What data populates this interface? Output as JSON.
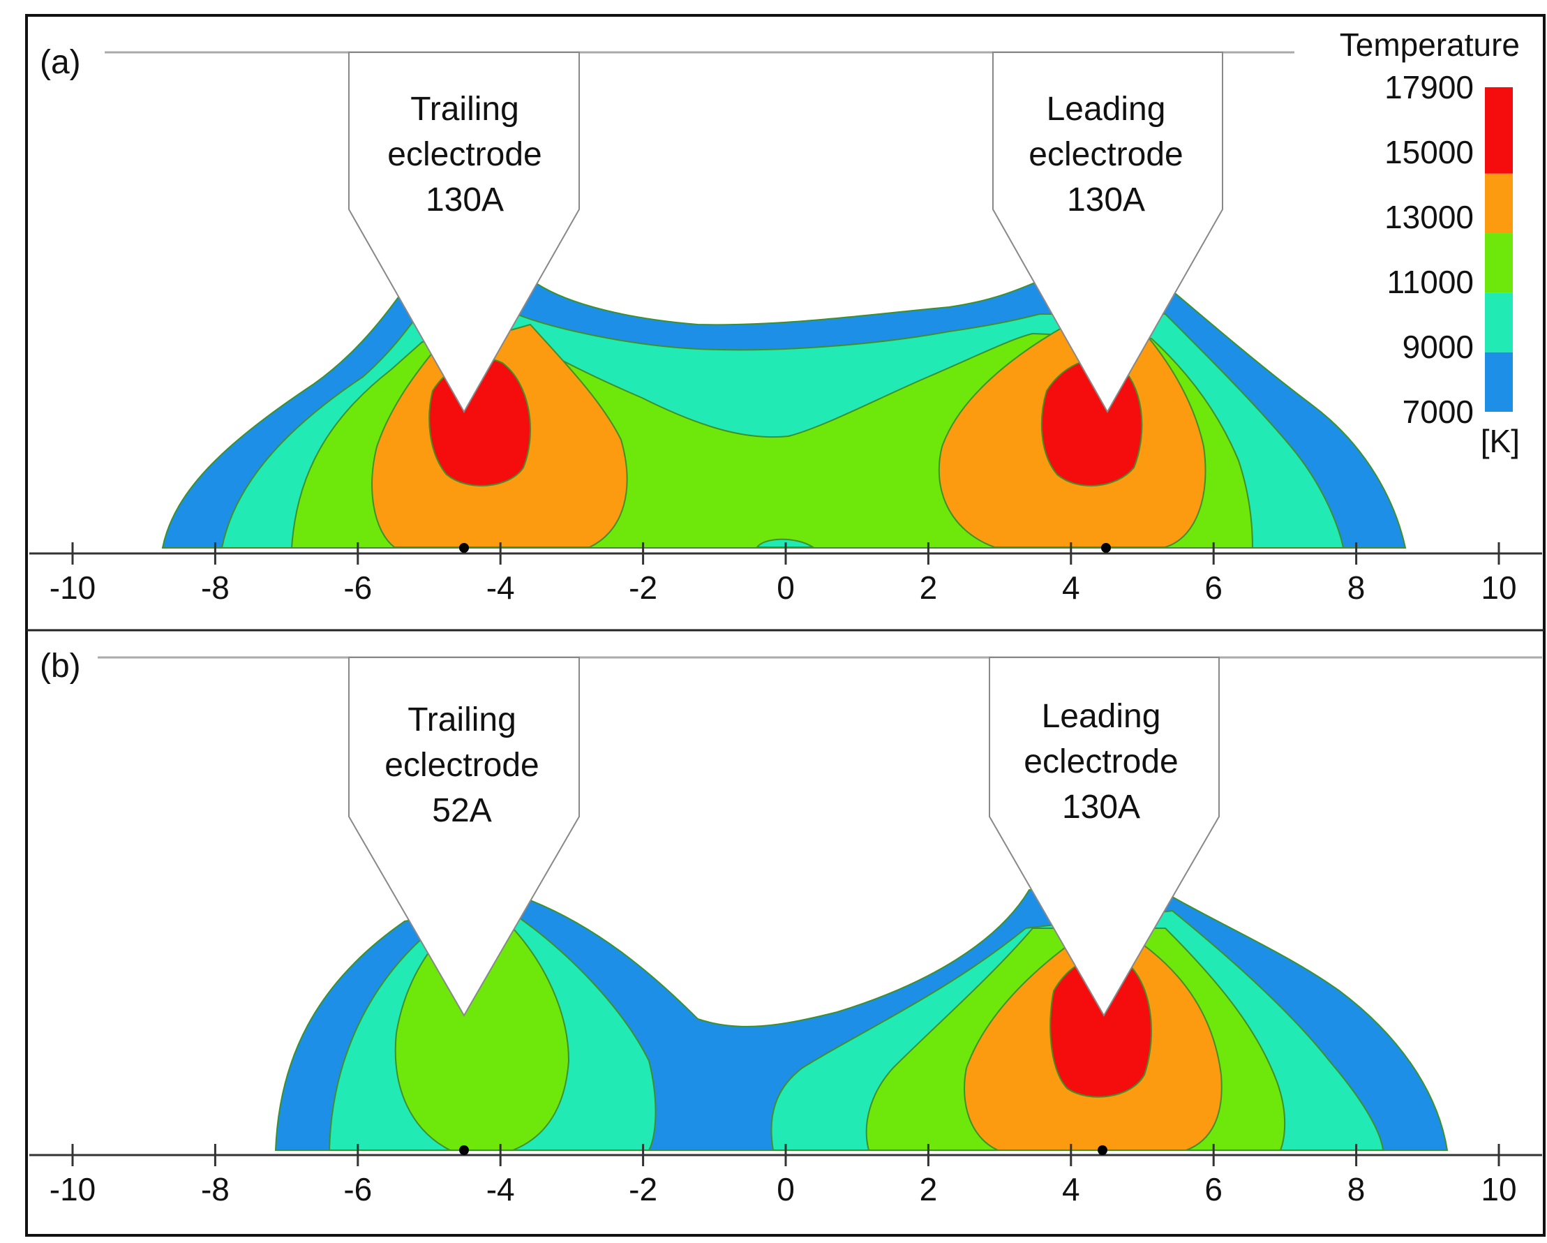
{
  "legend": {
    "title": "Temperature",
    "unit": "[K]",
    "ticks": [
      "7000",
      "9000",
      "11000",
      "13000",
      "15000",
      "17900"
    ],
    "bands": [
      {
        "from": 7000,
        "to": 9000,
        "color": "#1e8fe6"
      },
      {
        "from": 9000,
        "to": 11000,
        "color": "#22eab4"
      },
      {
        "from": 11000,
        "to": 13000,
        "color": "#6ee80a"
      },
      {
        "from": 13000,
        "to": 15000,
        "color": "#fc9a10"
      },
      {
        "from": 15000,
        "to": 17900,
        "color": "#f50d0d"
      }
    ]
  },
  "colors": {
    "band_7000_9000": "#1e8fe6",
    "band_9000_11000": "#22eab4",
    "band_11000_13000": "#6ee80a",
    "band_13000_15000": "#fc9a10",
    "band_15000_17900": "#f50d0d",
    "contour_line": "#3f8f2a",
    "frame": "#111111"
  },
  "axis": {
    "ticks": [
      "-10",
      "-8",
      "-6",
      "-4",
      "-2",
      "0",
      "2",
      "4",
      "6",
      "8",
      "10"
    ]
  },
  "panels": [
    {
      "label": "(a)",
      "trailing": {
        "line1": "Trailing",
        "line2": "eclectrode",
        "line3": "130A"
      },
      "leading": {
        "line1": "Leading",
        "line2": "eclectrode",
        "line3": "130A"
      }
    },
    {
      "label": "(b)",
      "trailing": {
        "line1": "Trailing",
        "line2": "eclectrode",
        "line3": "52A"
      },
      "leading": {
        "line1": "Leading",
        "line2": "eclectrode",
        "line3": "130A"
      }
    }
  ]
}
